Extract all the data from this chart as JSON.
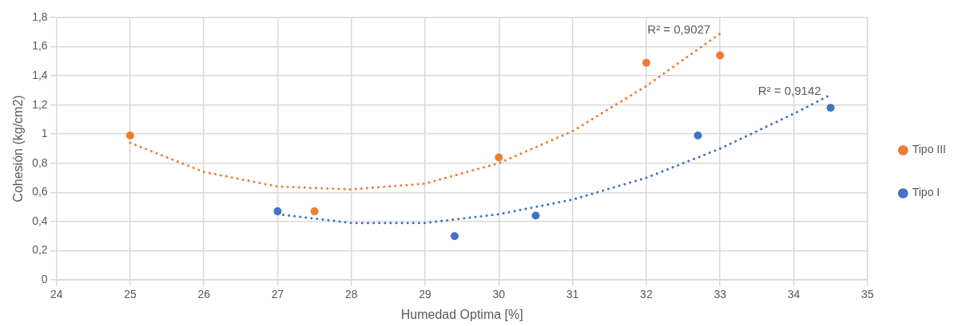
{
  "chart_data": {
    "type": "scatter",
    "xlabel": "Humedad Optima [%]",
    "ylabel": "Cohesión (kg/cm2)",
    "xlim": [
      24,
      35
    ],
    "xticks": [
      24,
      25,
      26,
      27,
      28,
      29,
      30,
      31,
      32,
      33,
      34,
      35
    ],
    "ylim": [
      0,
      1.8
    ],
    "yticks": [
      0,
      {
        "value": 0.2,
        "label": "0,2"
      },
      {
        "value": 0.4,
        "label": "0,4"
      },
      {
        "value": 0.6,
        "label": "0,6"
      },
      {
        "value": 0.8,
        "label": "0,8"
      },
      1,
      {
        "value": 1.2,
        "label": "1,2"
      },
      {
        "value": 1.4,
        "label": "1,4"
      },
      {
        "value": 1.6,
        "label": "1,6"
      },
      {
        "value": 1.8,
        "label": "1,8"
      }
    ],
    "grid": true,
    "legend": "right",
    "marker": "circle",
    "series": [
      {
        "name": "Tipo III",
        "type": "scatter",
        "color": "#ed7d31",
        "x": [
          25,
          27.5,
          30,
          32,
          33
        ],
        "values": [
          0.99,
          0.47,
          0.84,
          1.49,
          1.54
        ]
      },
      {
        "name": "Tipo I",
        "type": "scatter",
        "color": "#4472c4",
        "x": [
          27,
          29.4,
          30.5,
          32.7,
          34.5
        ],
        "values": [
          0.47,
          0.3,
          0.44,
          0.99,
          1.18
        ]
      },
      {
        "type": "line",
        "color": "#ed7d31",
        "line_style": "dotted",
        "marker": "none",
        "x": [
          25,
          26,
          27,
          28,
          29,
          30,
          31,
          32,
          33
        ],
        "values": [
          0.94,
          0.74,
          0.64,
          0.62,
          0.66,
          0.8,
          1.02,
          1.33,
          1.69
        ]
      },
      {
        "type": "line",
        "color": "#4472c4",
        "line_style": "dotted",
        "marker": "none",
        "x": [
          27,
          28,
          29,
          30,
          31,
          32,
          33,
          34,
          34.5
        ],
        "values": [
          0.45,
          0.39,
          0.39,
          0.45,
          0.55,
          0.7,
          0.9,
          1.14,
          1.27
        ]
      }
    ],
    "annotations": [
      "R² = 0,9027",
      "R² = 0,9142"
    ]
  }
}
